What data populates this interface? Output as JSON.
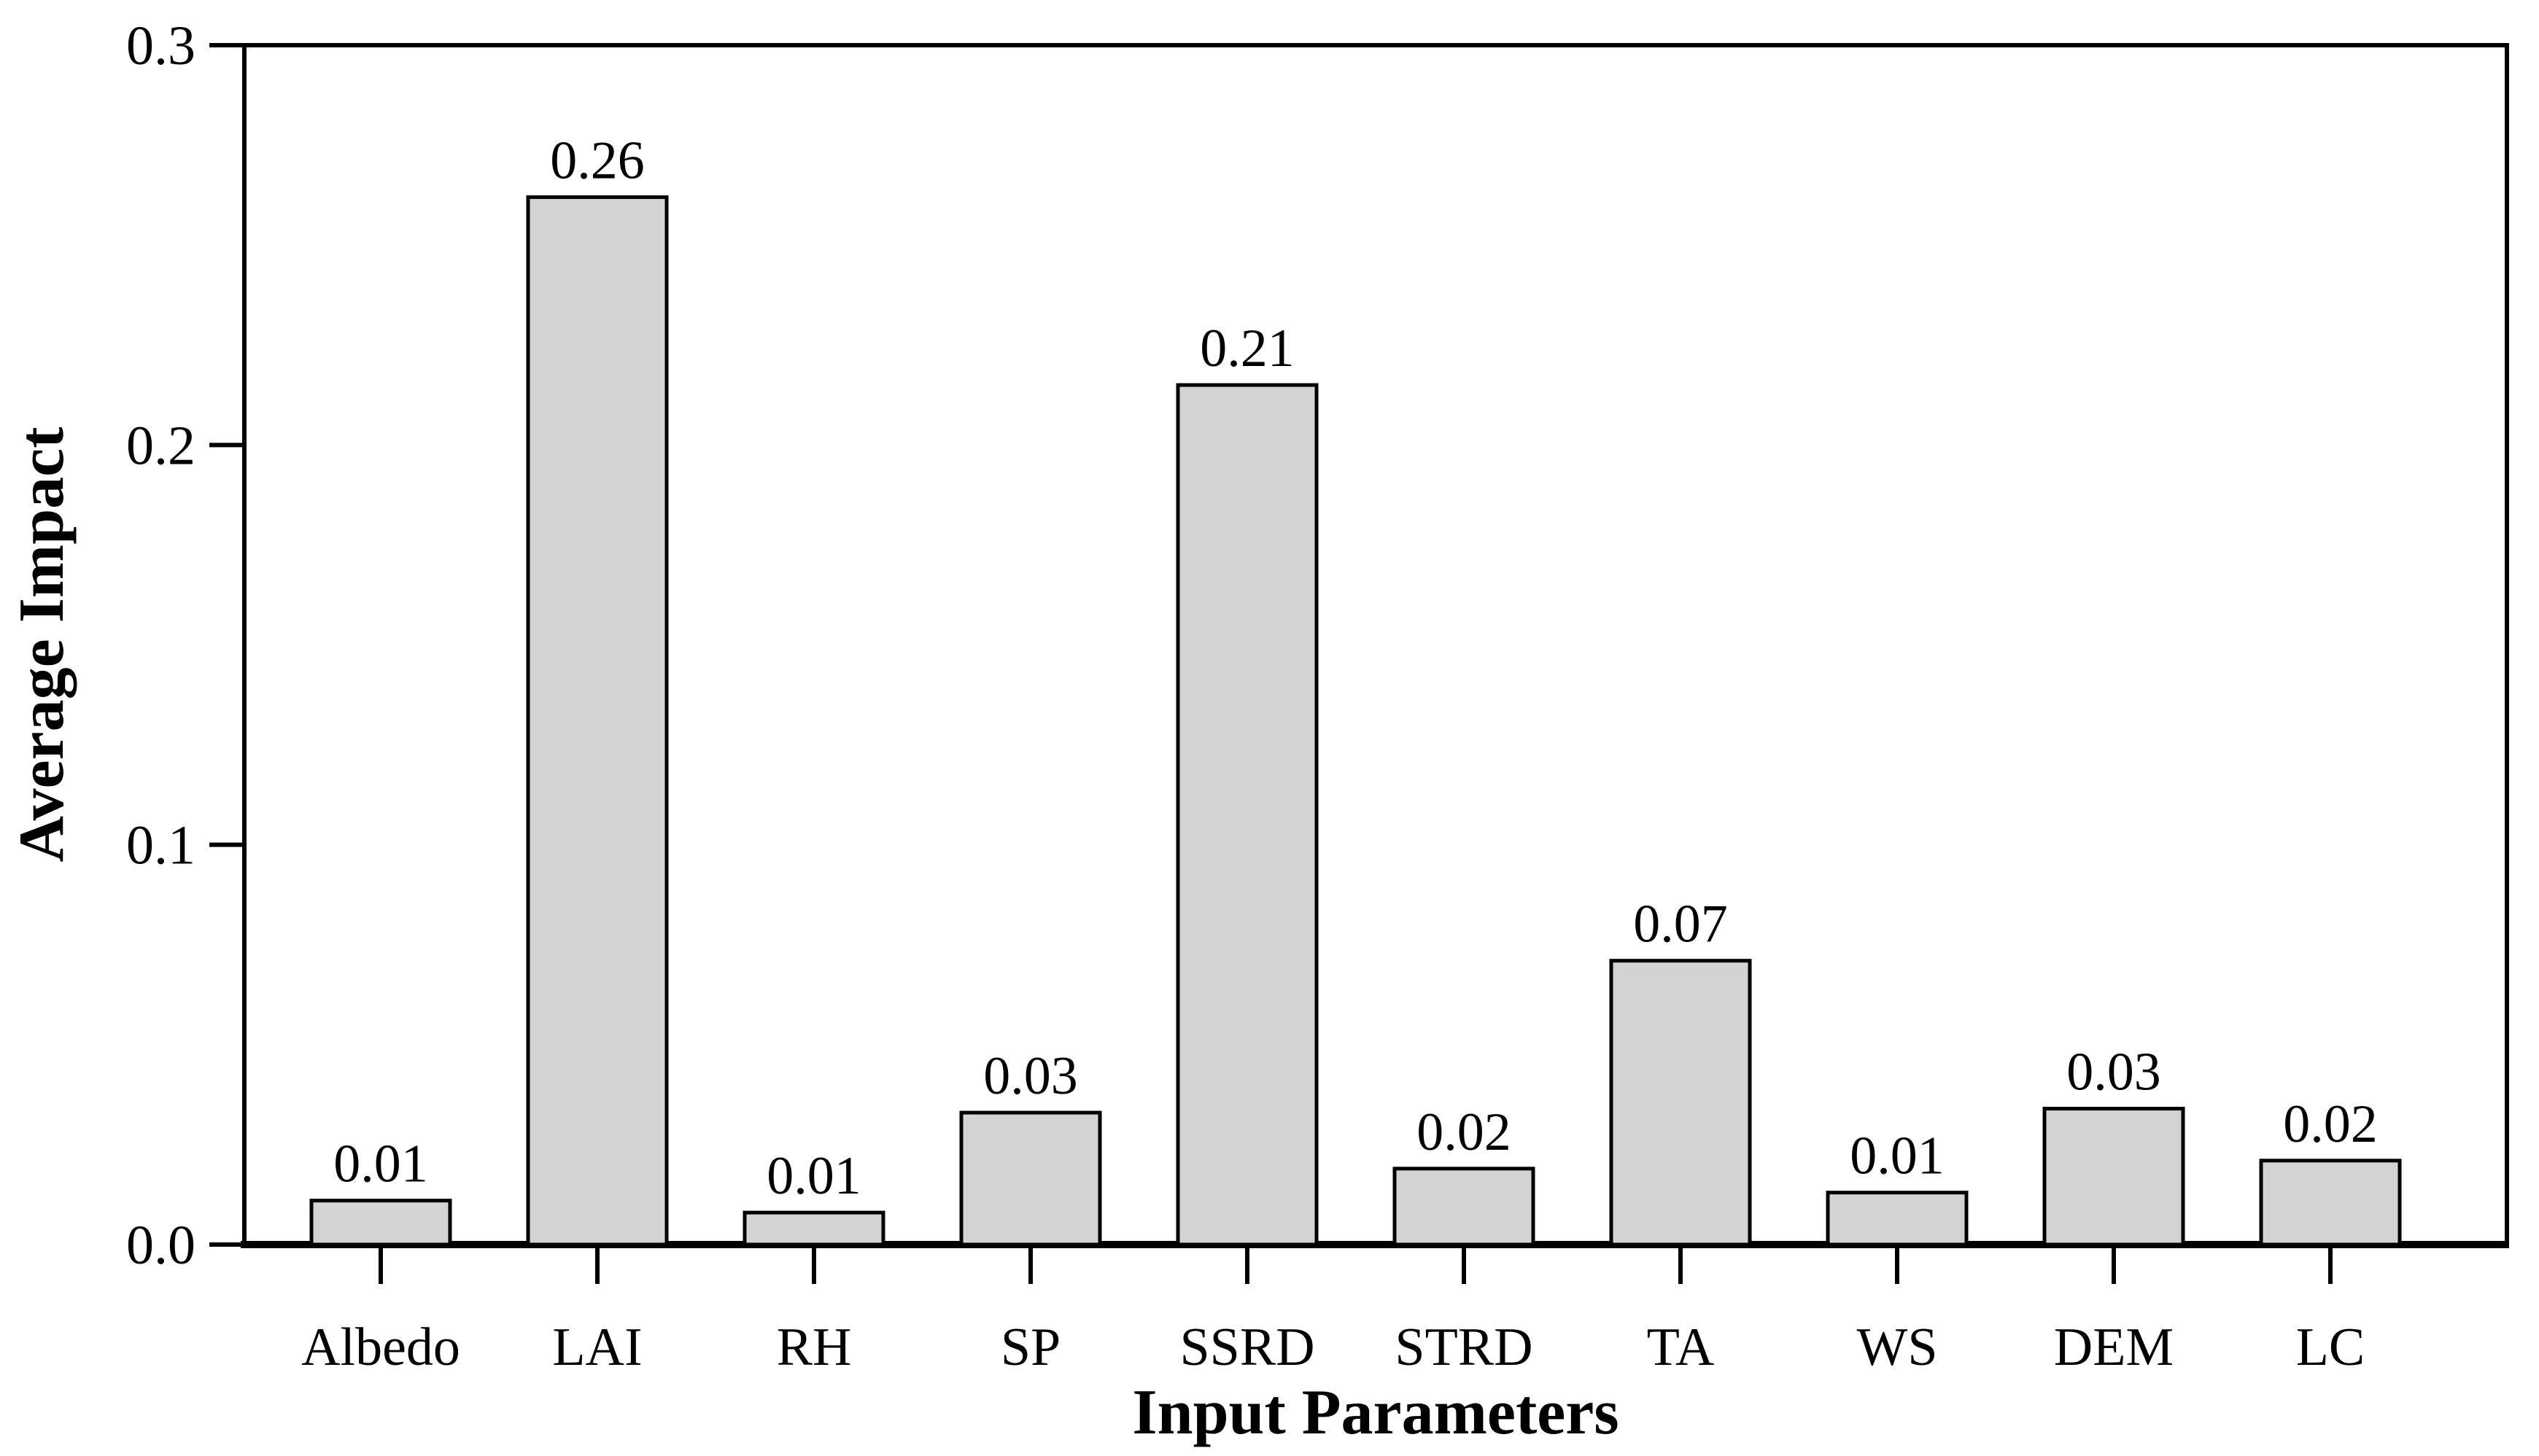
{
  "chart_data": {
    "type": "bar",
    "title": "",
    "xlabel": "Input Parameters",
    "ylabel": "Average Impact",
    "categories": [
      "Albedo",
      "LAI",
      "RH",
      "SP",
      "SSRD",
      "STRD",
      "TA",
      "WS",
      "DEM",
      "LC"
    ],
    "values": [
      0.01,
      0.26,
      0.01,
      0.03,
      0.21,
      0.02,
      0.07,
      0.01,
      0.03,
      0.02
    ],
    "value_labels": [
      "0.01",
      "0.26",
      "0.01",
      "0.03",
      "0.21",
      "0.02",
      "0.07",
      "0.01",
      "0.03",
      "0.02"
    ],
    "plotted_values": [
      0.011,
      0.262,
      0.008,
      0.033,
      0.215,
      0.019,
      0.071,
      0.013,
      0.034,
      0.021
    ],
    "ylim": [
      0,
      0.3
    ],
    "ytick_labels": [
      "0.0",
      "0.1",
      "0.2",
      "0.3"
    ],
    "grid": false,
    "legend": null,
    "series_name": "Average Impact",
    "colors": {
      "bar_fill": "#d3d3d3",
      "bar_stroke": "#000000",
      "axis": "#000000",
      "background": "#ffffff",
      "text": "#000000"
    }
  }
}
